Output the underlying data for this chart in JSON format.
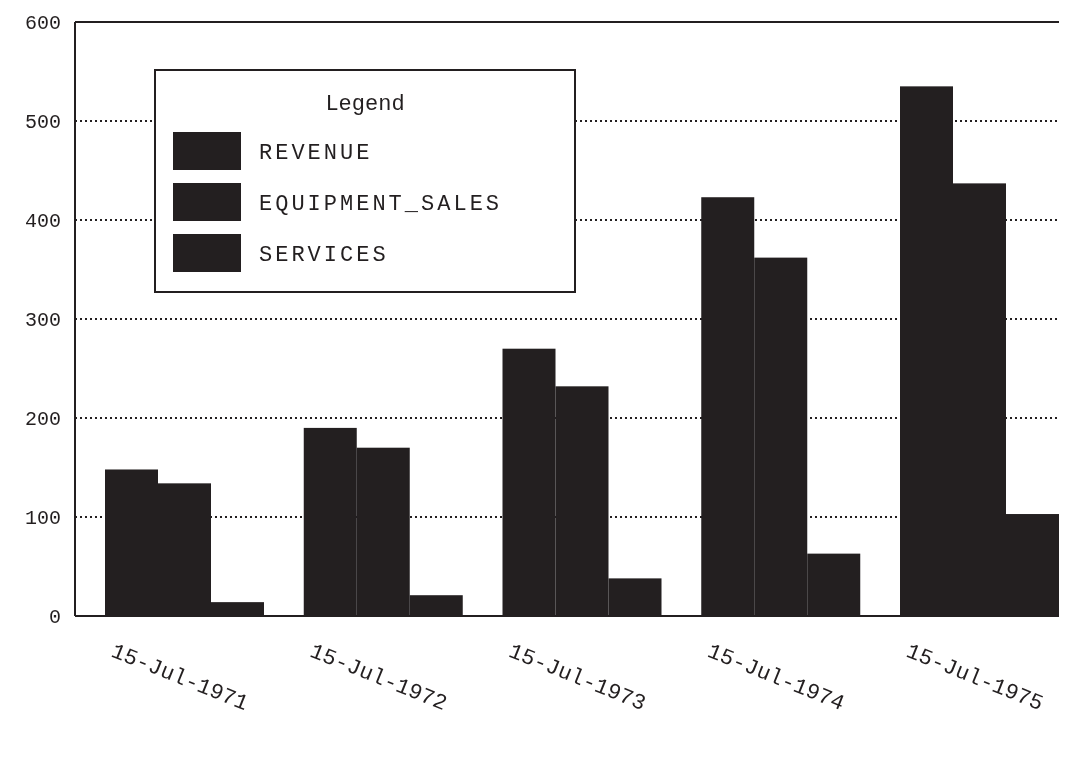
{
  "chart_data": {
    "type": "bar",
    "categories": [
      "15-Jul-1971",
      "15-Jul-1972",
      "15-Jul-1973",
      "15-Jul-1974",
      "15-Jul-1975"
    ],
    "series": [
      {
        "name": "REVENUE",
        "color": "#231f20",
        "values": [
          148,
          190,
          270,
          423,
          535
        ]
      },
      {
        "name": "EQUIPMENT_SALES",
        "color": "#231f20",
        "values": [
          134,
          170,
          232,
          362,
          437
        ]
      },
      {
        "name": "SERVICES",
        "color": "#231f20",
        "values": [
          14,
          21,
          38,
          63,
          103
        ]
      }
    ],
    "ylim": [
      0,
      600
    ],
    "yticks": [
      0,
      100,
      200,
      300,
      400,
      500,
      600
    ],
    "grid": "y",
    "legend": "top left",
    "legend_title": "Legend"
  }
}
